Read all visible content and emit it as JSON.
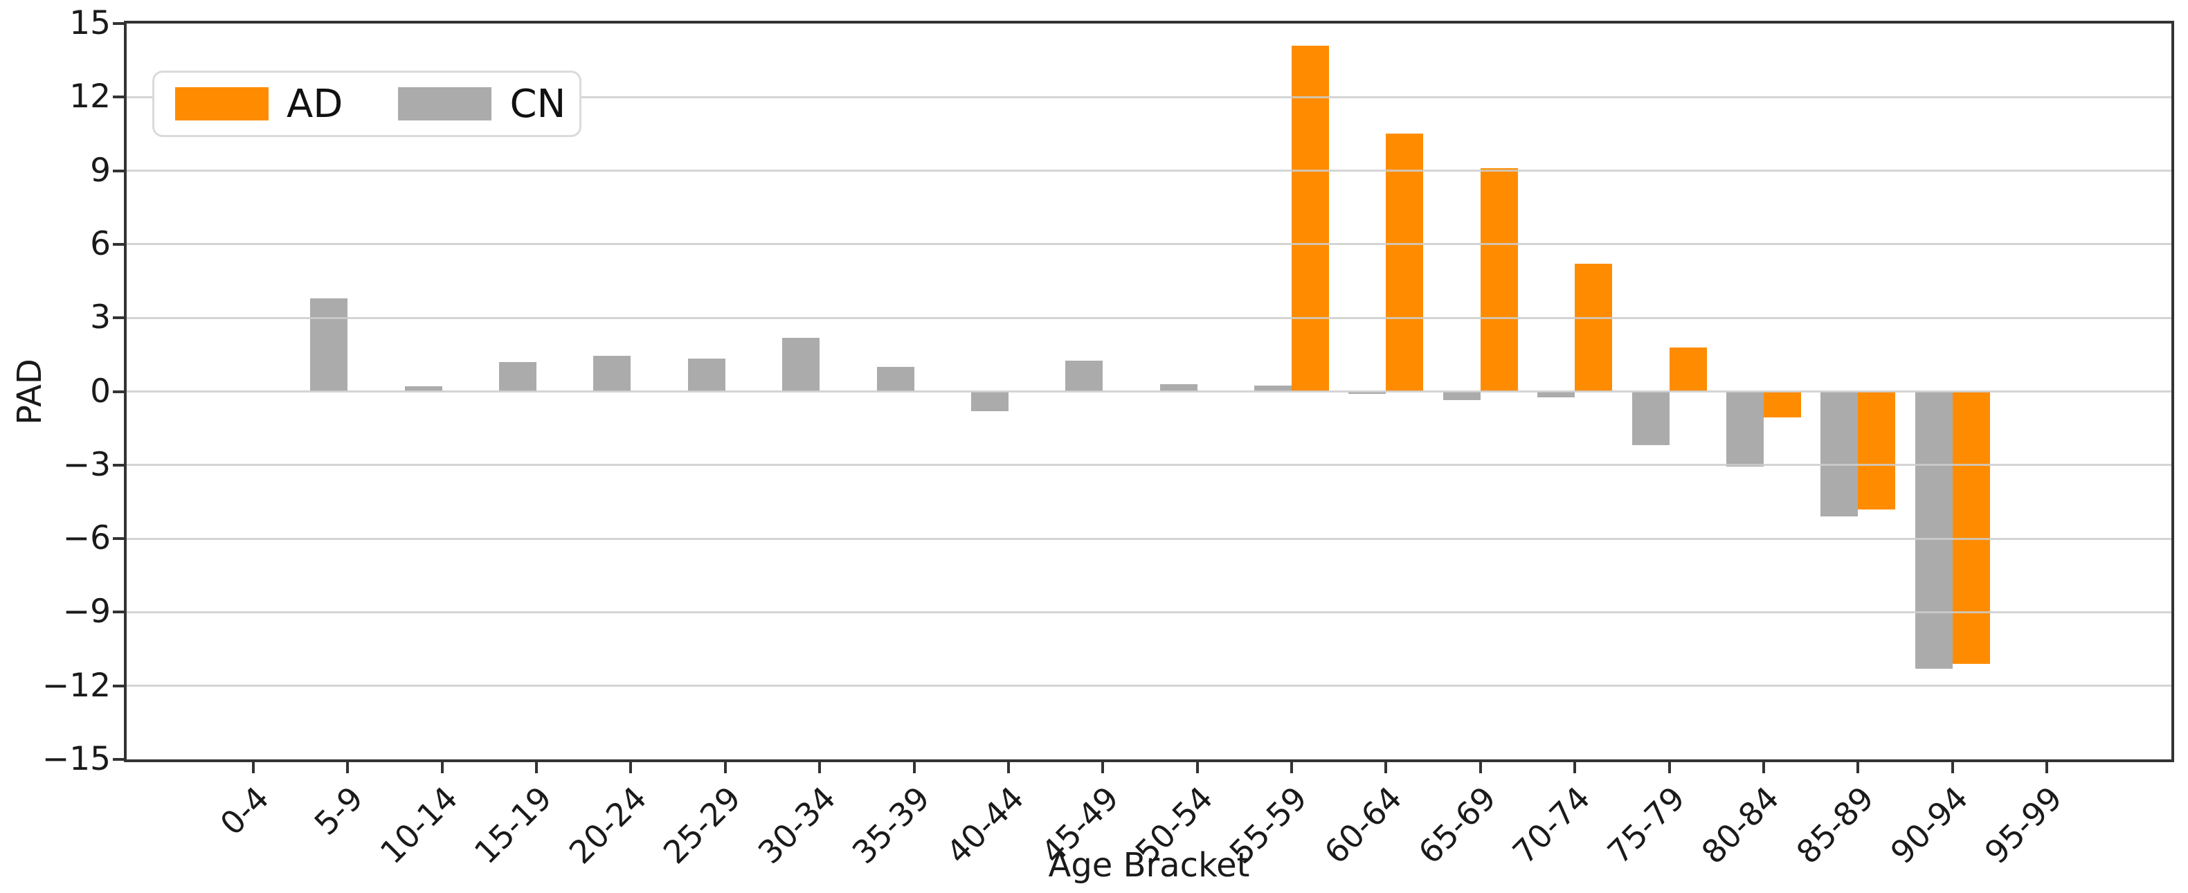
{
  "chart_data": {
    "type": "bar",
    "title": "",
    "xlabel": "Age Bracket",
    "ylabel": "PAD",
    "categories": [
      "0-4",
      "5-9",
      "10-14",
      "15-19",
      "20-24",
      "25-29",
      "30-34",
      "35-39",
      "40-44",
      "45-49",
      "50-54",
      "55-59",
      "60-64",
      "65-69",
      "70-74",
      "75-79",
      "80-84",
      "85-89",
      "90-94",
      "95-99"
    ],
    "series": [
      {
        "name": "AD",
        "color": "#FF8C00",
        "values": [
          0,
          0,
          0,
          0,
          0,
          0,
          0,
          0,
          0,
          0,
          0,
          14.1,
          10.5,
          9.1,
          5.2,
          1.8,
          -1.05,
          -4.8,
          -11.1,
          0
        ]
      },
      {
        "name": "CN",
        "color": "#ABABAB",
        "values": [
          0,
          3.8,
          0.2,
          1.2,
          1.45,
          1.35,
          2.2,
          1.0,
          -0.8,
          1.25,
          0.3,
          0.25,
          -0.1,
          -0.35,
          -0.25,
          -2.2,
          -3.05,
          -5.1,
          -11.3,
          0
        ]
      }
    ],
    "group_order": [
      "CN",
      "AD"
    ],
    "ylim": [
      -15,
      15
    ],
    "yticks": [
      15,
      12,
      9,
      6,
      3,
      0,
      -3,
      -6,
      -9,
      -12,
      -15
    ],
    "grid": "horizontal, light gray, drawn over bars",
    "legend_position": "upper left"
  },
  "legend": {
    "items": [
      {
        "label": "AD",
        "color": "#FF8C00"
      },
      {
        "label": "CN",
        "color": "#ABABAB"
      }
    ]
  },
  "colors": {
    "ad_orange": "#FF8C00",
    "cn_gray": "#ABABAB",
    "gridline": "#CDCDCD",
    "spine": "#333333",
    "text": "#1A1A1A",
    "background": "#FFFFFF"
  }
}
